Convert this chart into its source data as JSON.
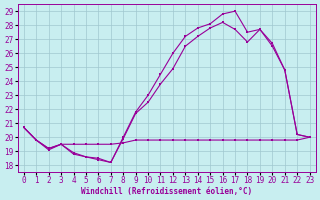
{
  "bg_color": "#c8eef0",
  "grid_color": "#a0c8d0",
  "line_color": "#990099",
  "xlabel": "Windchill (Refroidissement éolien,°C)",
  "x_ticks": [
    0,
    1,
    2,
    3,
    4,
    5,
    6,
    7,
    8,
    9,
    10,
    11,
    12,
    13,
    14,
    15,
    16,
    17,
    18,
    19,
    20,
    21,
    22,
    23
  ],
  "ylim": [
    17.5,
    29.5
  ],
  "xlim": [
    -0.5,
    23.5
  ],
  "yticks": [
    18,
    19,
    20,
    21,
    22,
    23,
    24,
    25,
    26,
    27,
    28,
    29
  ],
  "line1_x": [
    0,
    1,
    2,
    3,
    4,
    5,
    6,
    7,
    8,
    9,
    10,
    11,
    12,
    13,
    14,
    15,
    16,
    17,
    18,
    19,
    20,
    21,
    22,
    23
  ],
  "line1_y": [
    20.7,
    19.8,
    19.1,
    19.5,
    19.5,
    19.5,
    19.5,
    19.5,
    19.6,
    19.8,
    19.8,
    19.8,
    19.8,
    19.8,
    19.8,
    19.8,
    19.8,
    19.8,
    19.8,
    19.8,
    19.8,
    19.8,
    19.8,
    20.0
  ],
  "line2_x": [
    0,
    1,
    2,
    3,
    4,
    5,
    6,
    7,
    8,
    9,
    10,
    11,
    12,
    13,
    14,
    15,
    16,
    17,
    18,
    19,
    20,
    21,
    22,
    23
  ],
  "line2_y": [
    20.7,
    19.8,
    19.2,
    19.5,
    18.8,
    18.6,
    18.4,
    18.2,
    19.9,
    21.7,
    22.5,
    23.8,
    24.9,
    26.5,
    27.2,
    27.8,
    28.2,
    27.7,
    26.8,
    27.7,
    26.5,
    24.8,
    20.2,
    20.0
  ],
  "line3_x": [
    0,
    1,
    2,
    3,
    4,
    5,
    6,
    7,
    8,
    9,
    10,
    11,
    12,
    13,
    14,
    15,
    16,
    17,
    18,
    19,
    20,
    21,
    22,
    23
  ],
  "line3_y": [
    20.7,
    19.8,
    19.2,
    19.5,
    18.9,
    18.6,
    18.5,
    18.2,
    20.0,
    21.8,
    23.0,
    24.5,
    26.0,
    27.2,
    27.8,
    28.1,
    28.8,
    29.0,
    27.5,
    27.7,
    26.7,
    24.8,
    20.2,
    20.0
  ]
}
